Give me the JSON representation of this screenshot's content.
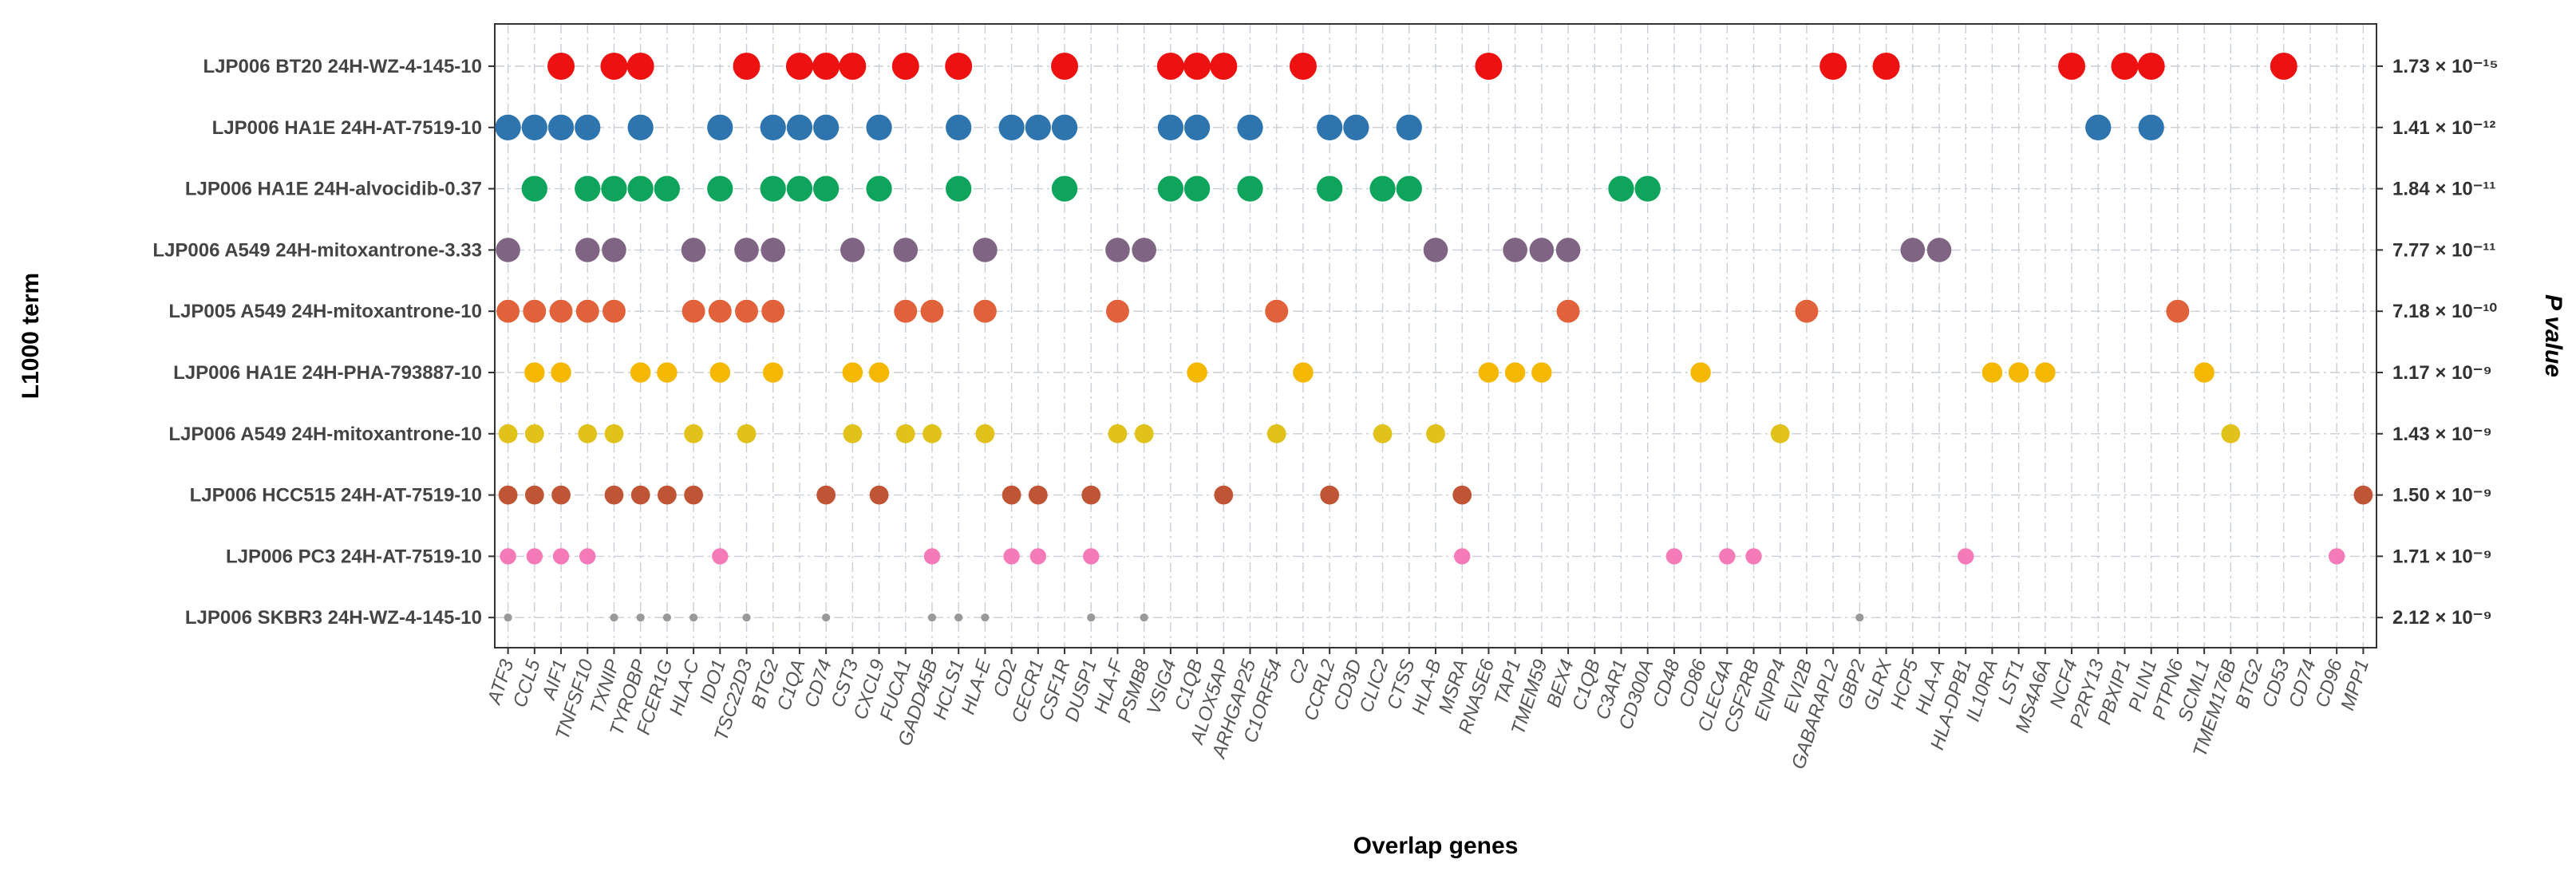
{
  "chart_data": {
    "type": "scatter",
    "xlabel": "Overlap genes",
    "ylabel": "L1000 term",
    "ylabel_right": "P value",
    "grid": true,
    "genes": [
      "ATF3",
      "CCL5",
      "AIF1",
      "TNFSF10",
      "TXNIP",
      "TYROBP",
      "FCER1G",
      "HLA-C",
      "IDO1",
      "TSC22D3",
      "BTG2",
      "C1QA",
      "CD74",
      "CST3",
      "CXCL9",
      "FUCA1",
      "GADD45B",
      "HCLS1",
      "HLA-E",
      "CD2",
      "CECR1",
      "CSF1R",
      "DUSP1",
      "HLA-F",
      "PSMB8",
      "VSIG4",
      "C1QB",
      "ALOX5AP",
      "ARHGAP25",
      "C1ORF54",
      "C2",
      "CCRL2",
      "CD3D",
      "CLIC2",
      "CTSS",
      "HLA-B",
      "MSRA",
      "RNASE6",
      "TAP1",
      "TMEM59",
      "BEX4",
      "C1QB",
      "C3AR1",
      "CD300A",
      "CD48",
      "CD86",
      "CLEC4A",
      "CSF2RB",
      "ENPP4",
      "EVI2B",
      "GABARAPL2",
      "GBP2",
      "GLRX",
      "HCP5",
      "HLA-A",
      "HLA-DPB1",
      "IL10RA",
      "LST1",
      "MS4A6A",
      "NCF4",
      "P2RY13",
      "PBXIP1",
      "PLIN1",
      "PTPN6",
      "SCML1",
      "TMEM176B",
      "BTG2",
      "CD53",
      "CD74",
      "CD96",
      "MPP1"
    ],
    "terms": [
      {
        "name": "LJP006 BT20 24H-WZ-4-145-10",
        "pvalue": "1.73 × 10⁻¹⁵",
        "color": "#ee1111",
        "size": 1.0,
        "genes": [
          "AIF1",
          "TXNIP",
          "TYROBP",
          "TSC22D3",
          "C1QA",
          "CD74",
          "CST3",
          "FUCA1",
          "HCLS1",
          "CSF1R",
          "VSIG4",
          "ALOX5AP",
          "C2",
          "RNASE6",
          "C1QB",
          "GABARAPL2",
          "GLRX",
          "NCF4",
          "PBXIP1",
          "PLIN1",
          "CD53"
        ]
      },
      {
        "name": "LJP006 HA1E 24H-AT-7519-10",
        "pvalue": "1.41 × 10⁻¹²",
        "color": "#2e75b0",
        "size": 0.95,
        "genes": [
          "ATF3",
          "CCL5",
          "AIF1",
          "TNFSF10",
          "TYROBP",
          "IDO1",
          "BTG2",
          "C1QA",
          "CD74",
          "CXCL9",
          "HCLS1",
          "CD2",
          "CECR1",
          "CSF1R",
          "VSIG4",
          "C1QB",
          "ARHGAP25",
          "CCRL2",
          "CD3D",
          "CTSS",
          "P2RY13",
          "PLIN1"
        ]
      },
      {
        "name": "LJP006 HA1E 24H-alvocidib-0.37",
        "pvalue": "1.84 × 10⁻¹¹",
        "color": "#0fa45c",
        "size": 0.95,
        "genes": [
          "CCL5",
          "TNFSF10",
          "TXNIP",
          "TYROBP",
          "FCER1G",
          "IDO1",
          "BTG2",
          "C1QA",
          "CD74",
          "CXCL9",
          "HCLS1",
          "CSF1R",
          "VSIG4",
          "C1QB",
          "ARHGAP25",
          "CCRL2",
          "CLIC2",
          "CTSS",
          "C3AR1",
          "CD300A"
        ]
      },
      {
        "name": "LJP006 A549 24H-mitoxantrone-3.33",
        "pvalue": "7.77 × 10⁻¹¹",
        "color": "#7f6583",
        "size": 0.9,
        "genes": [
          "ATF3",
          "TNFSF10",
          "TXNIP",
          "HLA-C",
          "TSC22D3",
          "BTG2",
          "CST3",
          "FUCA1",
          "HLA-E",
          "HLA-F",
          "PSMB8",
          "HLA-B",
          "TAP1",
          "TMEM59",
          "BEX4",
          "HCP5",
          "HLA-A"
        ]
      },
      {
        "name": "LJP005 A549 24H-mitoxantrone-10",
        "pvalue": "7.18 × 10⁻¹⁰",
        "color": "#e0613a",
        "size": 0.85,
        "genes": [
          "ATF3",
          "CCL5",
          "AIF1",
          "TNFSF10",
          "TXNIP",
          "HLA-C",
          "IDO1",
          "TSC22D3",
          "BTG2",
          "FUCA1",
          "GADD45B",
          "HLA-E",
          "HLA-F",
          "C1ORF54",
          "BEX4",
          "EVI2B",
          "PTPN6"
        ]
      },
      {
        "name": "LJP006 HA1E 24H-PHA-793887-10",
        "pvalue": "1.17 × 10⁻⁹",
        "color": "#f5b800",
        "size": 0.75,
        "genes": [
          "CCL5",
          "AIF1",
          "TYROBP",
          "FCER1G",
          "IDO1",
          "BTG2",
          "CST3",
          "CXCL9",
          "C1QB",
          "C2",
          "RNASE6",
          "TAP1",
          "TMEM59",
          "CD86",
          "IL10RA",
          "LST1",
          "MS4A6A",
          "SCML1"
        ]
      },
      {
        "name": "LJP006 A549 24H-mitoxantrone-10",
        "pvalue": "1.43 × 10⁻⁹",
        "color": "#e0c21a",
        "size": 0.7,
        "genes": [
          "ATF3",
          "CCL5",
          "TNFSF10",
          "TXNIP",
          "HLA-C",
          "TSC22D3",
          "CST3",
          "FUCA1",
          "GADD45B",
          "HLA-E",
          "HLA-F",
          "PSMB8",
          "C1ORF54",
          "CLIC2",
          "HLA-B",
          "ENPP4",
          "TMEM176B"
        ]
      },
      {
        "name": "LJP006 HCC515 24H-AT-7519-10",
        "pvalue": "1.50 × 10⁻⁹",
        "color": "#bf5535",
        "size": 0.7,
        "genes": [
          "ATF3",
          "CCL5",
          "AIF1",
          "TXNIP",
          "TYROBP",
          "FCER1G",
          "HLA-C",
          "CD74",
          "CXCL9",
          "CD2",
          "CECR1",
          "DUSP1",
          "ALOX5AP",
          "CCRL2",
          "MSRA",
          "MPP1"
        ]
      },
      {
        "name": "LJP006 PC3 24H-AT-7519-10",
        "pvalue": "1.71 × 10⁻⁹",
        "color": "#f57ab8",
        "size": 0.6,
        "genes": [
          "ATF3",
          "CCL5",
          "AIF1",
          "TNFSF10",
          "IDO1",
          "GADD45B",
          "CD2",
          "CECR1",
          "DUSP1",
          "MSRA",
          "CD48",
          "CLEC4A",
          "CSF2RB",
          "HLA-DPB1",
          "CD96"
        ]
      },
      {
        "name": "LJP006 SKBR3 24H-WZ-4-145-10",
        "pvalue": "2.12 × 10⁻⁹",
        "color": "#999999",
        "size": 0.3,
        "genes": [
          "ATF3",
          "TXNIP",
          "TYROBP",
          "FCER1G",
          "HLA-C",
          "TSC22D3",
          "GADD45B",
          "HCLS1",
          "HLA-E",
          "DUSP1",
          "PSMB8",
          "GBP2",
          "CD74"
        ]
      }
    ]
  }
}
